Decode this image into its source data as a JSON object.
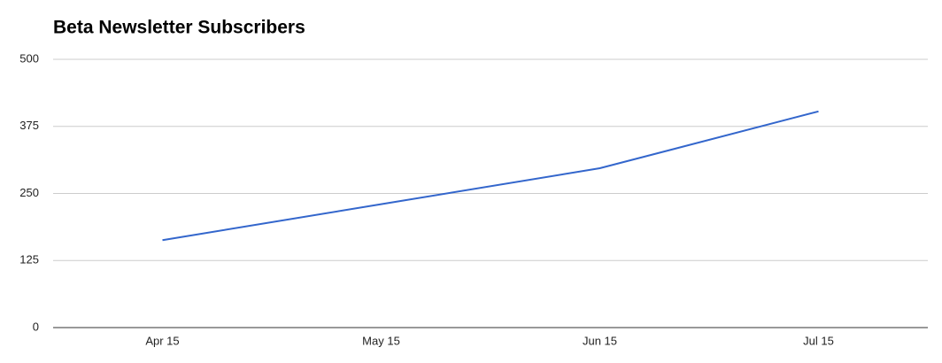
{
  "chart_data": {
    "type": "line",
    "title": "Beta Newsletter Subscribers",
    "categories": [
      "Apr 15",
      "May 15",
      "Jun 15",
      "Jul 15"
    ],
    "series": [
      {
        "name": "Subscribers",
        "color": "#3366cc",
        "values": [
          163,
          230,
          297,
          403
        ]
      }
    ],
    "ylim": [
      0,
      500
    ],
    "yticks": [
      0,
      125,
      250,
      375,
      500
    ],
    "grid": true
  }
}
